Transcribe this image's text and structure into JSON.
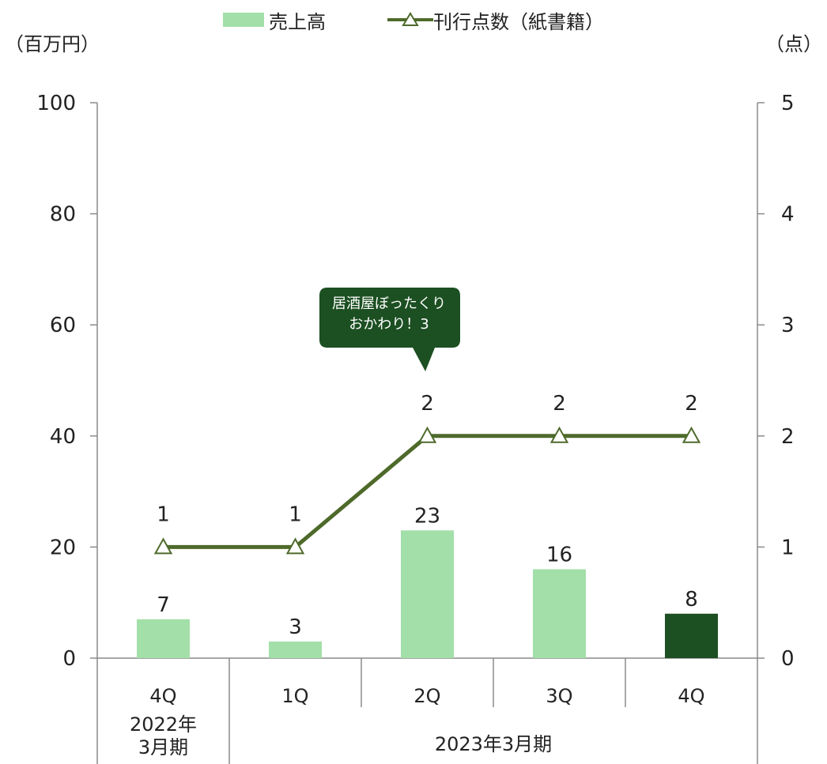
{
  "legend": {
    "sales": "売上高",
    "titles": "刊行点数（紙書籍）"
  },
  "units": {
    "left": "（百万円）",
    "right": "（点）"
  },
  "callout": {
    "line1": "居酒屋ぼったくり",
    "line2": "おかわり！3"
  },
  "colors": {
    "bar": "#a3dfa8",
    "bar_highlight": "#1c4f22",
    "line": "#4e6a2a",
    "callout_bg": "#1c4f22"
  },
  "chart_data": {
    "type": "bar",
    "categories": [
      "4Q",
      "1Q",
      "2Q",
      "3Q",
      "4Q"
    ],
    "period_labels": [
      {
        "label": "2022年\n3月期",
        "span": [
          0,
          0
        ]
      },
      {
        "label": "2023年3月期",
        "span": [
          1,
          4
        ]
      }
    ],
    "series": [
      {
        "name": "売上高",
        "type": "bar",
        "axis": "left",
        "values": [
          7,
          3,
          23,
          16,
          8
        ],
        "highlight_index": 4
      },
      {
        "name": "刊行点数（紙書籍）",
        "type": "line",
        "axis": "right",
        "values": [
          1,
          1,
          2,
          2,
          2
        ],
        "marker": "triangle"
      }
    ],
    "y_left": {
      "ylim": [
        0,
        100
      ],
      "ticks": [
        0,
        20,
        40,
        60,
        80,
        100
      ]
    },
    "y_right": {
      "ylim": [
        0,
        5
      ],
      "ticks": [
        0,
        1,
        2,
        3,
        4,
        5
      ]
    },
    "grid": false,
    "legend_position": "top-center"
  }
}
